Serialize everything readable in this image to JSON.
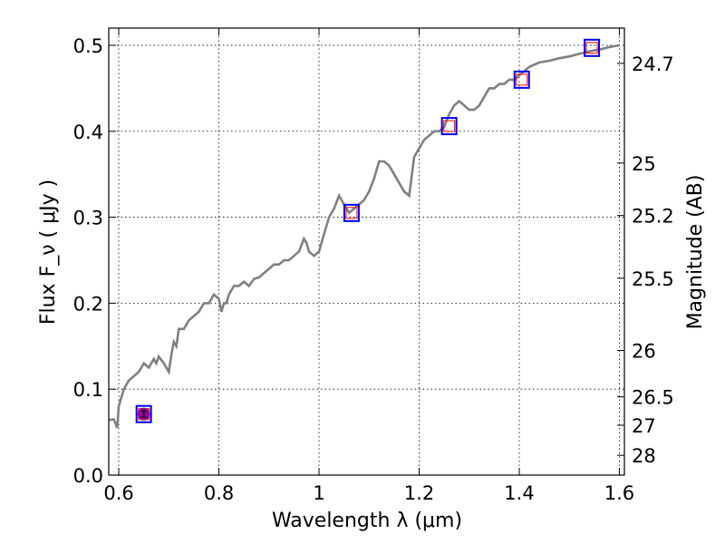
{
  "chart_data": {
    "type": "line",
    "xlabel": "Wavelength  λ (μm)",
    "ylabel": "Flux  F_ν  ( μJy )",
    "y2label": "Magnitude (AB)",
    "xlim": [
      0.58,
      1.61
    ],
    "ylim": [
      0.0,
      0.52
    ],
    "grid": true,
    "x_ticks": [
      0.6,
      0.8,
      1.0,
      1.2,
      1.4,
      1.6
    ],
    "x_tick_labels": [
      "0.6",
      "0.8",
      "1",
      "1.2",
      "1.4",
      "1.6"
    ],
    "y_ticks": [
      0.0,
      0.1,
      0.2,
      0.3,
      0.4,
      0.5
    ],
    "y_tick_labels": [
      "0.0",
      "0.1",
      "0.2",
      "0.3",
      "0.4",
      "0.5"
    ],
    "y2_ticks": [
      {
        "label": "24.7",
        "flux": 0.479
      },
      {
        "label": "25",
        "flux": 0.363
      },
      {
        "label": "25.2",
        "flux": 0.302
      },
      {
        "label": "25.5",
        "flux": 0.229
      },
      {
        "label": "26",
        "flux": 0.145
      },
      {
        "label": "26.5",
        "flux": 0.091
      },
      {
        "label": "27",
        "flux": 0.058
      },
      {
        "label": "28",
        "flux": 0.023
      }
    ],
    "colors": {
      "model": "#808080",
      "square_outer": "#0000ff",
      "square_inner": "#ff0000",
      "marker": "#9b009b"
    },
    "series": [
      {
        "kind": "model-spectrum",
        "x": [
          0.58,
          0.59,
          0.597,
          0.6,
          0.605,
          0.61,
          0.62,
          0.63,
          0.64,
          0.645,
          0.65,
          0.66,
          0.67,
          0.675,
          0.68,
          0.69,
          0.7,
          0.705,
          0.71,
          0.715,
          0.72,
          0.73,
          0.74,
          0.75,
          0.76,
          0.77,
          0.78,
          0.79,
          0.8,
          0.805,
          0.81,
          0.815,
          0.82,
          0.83,
          0.84,
          0.85,
          0.86,
          0.87,
          0.88,
          0.89,
          0.9,
          0.91,
          0.92,
          0.93,
          0.94,
          0.95,
          0.96,
          0.97,
          0.975,
          0.98,
          0.99,
          1.0,
          1.01,
          1.02,
          1.03,
          1.04,
          1.05,
          1.06,
          1.07,
          1.08,
          1.09,
          1.1,
          1.11,
          1.12,
          1.13,
          1.14,
          1.15,
          1.16,
          1.17,
          1.18,
          1.19,
          1.2,
          1.21,
          1.22,
          1.23,
          1.24,
          1.25,
          1.26,
          1.27,
          1.28,
          1.29,
          1.3,
          1.31,
          1.32,
          1.33,
          1.34,
          1.35,
          1.36,
          1.37,
          1.38,
          1.39,
          1.4,
          1.42,
          1.44,
          1.46,
          1.48,
          1.5,
          1.52,
          1.54,
          1.56,
          1.58,
          1.6
        ],
        "y": [
          0.064,
          0.065,
          0.055,
          0.08,
          0.09,
          0.1,
          0.11,
          0.115,
          0.12,
          0.125,
          0.13,
          0.125,
          0.135,
          0.13,
          0.138,
          0.13,
          0.12,
          0.14,
          0.155,
          0.15,
          0.17,
          0.17,
          0.18,
          0.185,
          0.19,
          0.2,
          0.2,
          0.21,
          0.205,
          0.19,
          0.2,
          0.2,
          0.21,
          0.22,
          0.22,
          0.225,
          0.22,
          0.228,
          0.23,
          0.235,
          0.24,
          0.245,
          0.245,
          0.25,
          0.25,
          0.255,
          0.26,
          0.275,
          0.27,
          0.26,
          0.255,
          0.26,
          0.28,
          0.3,
          0.31,
          0.325,
          0.315,
          0.305,
          0.31,
          0.315,
          0.32,
          0.33,
          0.345,
          0.365,
          0.365,
          0.36,
          0.35,
          0.34,
          0.33,
          0.325,
          0.37,
          0.38,
          0.39,
          0.395,
          0.4,
          0.4,
          0.405,
          0.42,
          0.43,
          0.435,
          0.43,
          0.425,
          0.425,
          0.43,
          0.44,
          0.45,
          0.45,
          0.455,
          0.455,
          0.46,
          0.46,
          0.465,
          0.475,
          0.48,
          0.482,
          0.485,
          0.487,
          0.49,
          0.493,
          0.495,
          0.498,
          0.5
        ]
      },
      {
        "kind": "photometry-squares",
        "x": [
          0.65,
          1.065,
          1.26,
          1.405,
          1.545
        ],
        "y": [
          0.071,
          0.305,
          0.406,
          0.46,
          0.497
        ]
      },
      {
        "kind": "observed-point",
        "x": [
          0.65
        ],
        "y": [
          0.071
        ],
        "yerr": [
          0.004
        ]
      }
    ]
  }
}
